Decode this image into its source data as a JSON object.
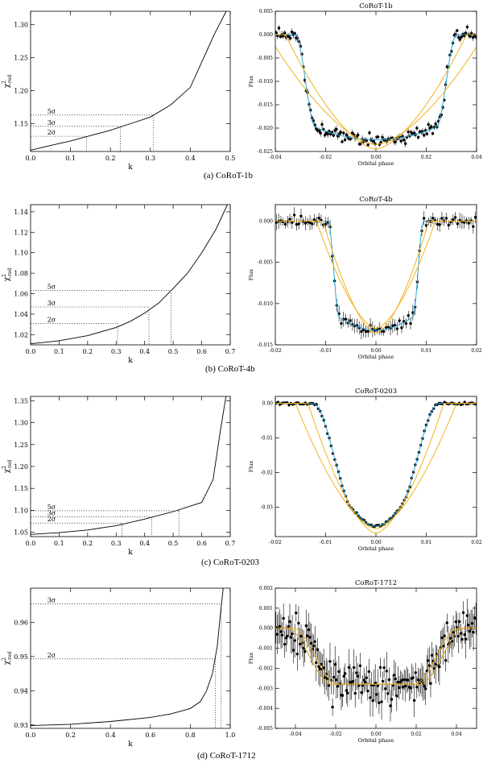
{
  "captions": [
    "(a) CoRoT-1b",
    "(b) CoRoT-4b",
    "(c) CoRoT-0203",
    "(d) CoRoT-1712"
  ],
  "chart_data": [
    {
      "type": "line",
      "panel": "a-left",
      "title": "",
      "xlabel": "k",
      "ylabel": "χ²red",
      "xlim": [
        0,
        0.5
      ],
      "ylim": [
        1.108,
        1.32
      ],
      "xticks": [
        0,
        0.1,
        0.2,
        0.3,
        0.4,
        0.5
      ],
      "xticklabels": [
        "0.0",
        "0.1",
        "0.2",
        "0.3",
        "0.4",
        "0.5"
      ],
      "yticks": [
        1.15,
        1.2,
        1.25,
        1.3
      ],
      "yticklabels": [
        "1.15",
        "1.20",
        "1.25",
        "1.30"
      ],
      "x": [
        0,
        0.05,
        0.1,
        0.15,
        0.2,
        0.25,
        0.3,
        0.35,
        0.4,
        0.43,
        0.46,
        0.49
      ],
      "y": [
        1.11,
        1.117,
        1.124,
        1.132,
        1.14,
        1.15,
        1.16,
        1.178,
        1.205,
        1.245,
        1.285,
        1.32
      ],
      "levels": [
        {
          "label": "5σ",
          "y": 1.163,
          "k": 0.308
        },
        {
          "label": "3σ",
          "y": 1.146,
          "k": 0.225
        },
        {
          "label": "2σ",
          "y": 1.131,
          "k": 0.14
        }
      ]
    },
    {
      "type": "scatter",
      "panel": "a-right",
      "title": "CoRoT-1b",
      "xlabel": "Orbital phase",
      "ylabel": "Flux",
      "xlim": [
        -0.04,
        0.04
      ],
      "ylim": [
        -0.025,
        0.005
      ],
      "xticks": [
        -0.04,
        -0.02,
        0,
        0.02,
        0.04
      ],
      "xticklabels": [
        "-0.04",
        "-0.02",
        "0.00",
        "0.02",
        "0.04"
      ],
      "yticks": [
        0.005,
        0,
        -0.005,
        -0.01,
        -0.015,
        -0.02,
        -0.025
      ],
      "yticklabels": [
        "0.005",
        "0.000",
        "-0.005",
        "-0.010",
        "-0.015",
        "-0.020",
        "-0.025"
      ],
      "depth": -0.0225,
      "t14": 0.032,
      "t12": 0.008,
      "npoints": 140,
      "noise": 0.0006,
      "errbar": 0.0006,
      "models": [
        {
          "name": "blue",
          "color": "#29a8d8",
          "shape": "trapezoid"
        },
        {
          "name": "orange1",
          "color": "#f2b21e",
          "shape": "vee",
          "depth": -0.0245,
          "half": 0.036
        },
        {
          "name": "orange2",
          "color": "#f2b21e",
          "shape": "vee",
          "depth": -0.0235,
          "half": 0.043
        }
      ]
    },
    {
      "type": "line",
      "panel": "b-left",
      "title": "",
      "xlabel": "k",
      "ylabel": "χ²red",
      "xlim": [
        0,
        0.7
      ],
      "ylim": [
        1.01,
        1.147
      ],
      "xticks": [
        0,
        0.1,
        0.2,
        0.3,
        0.4,
        0.5,
        0.6,
        0.7
      ],
      "xticklabels": [
        "0.0",
        "0.1",
        "0.2",
        "0.3",
        "0.4",
        "0.5",
        "0.6",
        "0.7"
      ],
      "yticks": [
        1.02,
        1.04,
        1.06,
        1.08,
        1.1,
        1.12,
        1.14
      ],
      "yticklabels": [
        "1.02",
        "1.04",
        "1.06",
        "1.08",
        "1.10",
        "1.12",
        "1.14"
      ],
      "x": [
        0,
        0.1,
        0.2,
        0.3,
        0.35,
        0.4,
        0.45,
        0.5,
        0.55,
        0.6,
        0.65,
        0.69
      ],
      "y": [
        1.011,
        1.014,
        1.019,
        1.027,
        1.033,
        1.041,
        1.051,
        1.065,
        1.08,
        1.1,
        1.123,
        1.147
      ],
      "levels": [
        {
          "label": "5σ",
          "y": 1.063,
          "k": 0.492
        },
        {
          "label": "3σ",
          "y": 1.047,
          "k": 0.415
        },
        {
          "label": "2σ",
          "y": 1.031,
          "k": 0.305
        }
      ]
    },
    {
      "type": "scatter",
      "panel": "b-right",
      "title": "CoRoT-4b",
      "xlabel": "Orbital phase",
      "ylabel": "Flux",
      "xlim": [
        -0.02,
        0.02
      ],
      "ylim": [
        -0.015,
        0.002
      ],
      "xticks": [
        -0.02,
        -0.01,
        0,
        0.01,
        0.02
      ],
      "xticklabels": [
        "-0.02",
        "-0.01",
        "0.00",
        "0.01",
        "0.02"
      ],
      "yticks": [
        0,
        -0.005,
        -0.01,
        -0.015
      ],
      "yticklabels": [
        "0.000",
        "-0.005",
        "-0.010",
        "-0.015"
      ],
      "depth": -0.0132,
      "t14": 0.0095,
      "t12": 0.0022,
      "npoints": 90,
      "noise": 0.0003,
      "errbar": 0.0007,
      "models": [
        {
          "name": "blue",
          "color": "#29a8d8",
          "shape": "trapezoid"
        },
        {
          "name": "orange1",
          "color": "#f2b21e",
          "shape": "vee",
          "depth": -0.0136,
          "half": 0.0105
        },
        {
          "name": "orange2",
          "color": "#f2b21e",
          "shape": "vee",
          "depth": -0.013,
          "half": 0.0118
        }
      ]
    },
    {
      "type": "line",
      "panel": "c-left",
      "title": "",
      "xlabel": "k",
      "ylabel": "χ²red",
      "xlim": [
        0,
        0.7
      ],
      "ylim": [
        1.04,
        1.36
      ],
      "xticks": [
        0,
        0.1,
        0.2,
        0.3,
        0.4,
        0.5,
        0.6,
        0.7
      ],
      "xticklabels": [
        "0.0",
        "0.1",
        "0.2",
        "0.3",
        "0.4",
        "0.5",
        "0.6",
        "0.7"
      ],
      "yticks": [
        1.05,
        1.1,
        1.15,
        1.2,
        1.25,
        1.3,
        1.35
      ],
      "yticklabels": [
        "1.05",
        "1.10",
        "1.15",
        "1.20",
        "1.25",
        "1.30",
        "1.35"
      ],
      "x": [
        0,
        0.1,
        0.2,
        0.3,
        0.4,
        0.5,
        0.6,
        0.64,
        0.665,
        0.685
      ],
      "y": [
        1.045,
        1.049,
        1.055,
        1.065,
        1.08,
        1.097,
        1.118,
        1.17,
        1.28,
        1.36
      ],
      "levels": [
        {
          "label": "5σ",
          "y": 1.099,
          "k": 0.52
        },
        {
          "label": "3σ",
          "y": 1.085,
          "k": 0.425
        },
        {
          "label": "2σ",
          "y": 1.071,
          "k": 0.32
        }
      ]
    },
    {
      "type": "scatter",
      "panel": "c-right",
      "title": "CoRoT-0203",
      "xlabel": "Orbital phase",
      "ylabel": "Flux",
      "xlim": [
        -0.02,
        0.02
      ],
      "ylim": [
        -0.0385,
        0.002
      ],
      "xticks": [
        -0.02,
        -0.01,
        0,
        0.01,
        0.02
      ],
      "xticklabels": [
        "-0.02",
        "-0.01",
        "0.00",
        "0.01",
        "0.02"
      ],
      "yticks": [
        0,
        -0.01,
        -0.02,
        -0.03
      ],
      "yticklabels": [
        "0.00",
        "-0.01",
        "-0.02",
        "-0.03"
      ],
      "depth": -0.0355,
      "t14": 0.0125,
      "t12": 0.0085,
      "npoints": 110,
      "noise": 0.0002,
      "errbar": 0.0004,
      "models": [
        {
          "name": "blue",
          "color": "#29a8d8",
          "shape": "trapezoid"
        },
        {
          "name": "orange1",
          "color": "#f2b21e",
          "shape": "vee",
          "depth": -0.0375,
          "half": 0.0135
        },
        {
          "name": "orange2",
          "color": "#f2b21e",
          "shape": "vee",
          "depth": -0.0362,
          "half": 0.016
        }
      ]
    },
    {
      "type": "line",
      "panel": "d-left",
      "title": "",
      "xlabel": "k",
      "ylabel": "χ²red",
      "xlim": [
        0,
        1.0
      ],
      "ylim": [
        0.929,
        0.97
      ],
      "xticks": [
        0,
        0.2,
        0.4,
        0.6,
        0.8,
        1.0
      ],
      "xticklabels": [
        "0.0",
        "0.2",
        "0.4",
        "0.6",
        "0.8",
        "1.0"
      ],
      "yticks": [
        0.93,
        0.94,
        0.95,
        0.96
      ],
      "yticklabels": [
        "0.93",
        "0.94",
        "0.95",
        "0.96"
      ],
      "x": [
        0,
        0.2,
        0.4,
        0.6,
        0.7,
        0.8,
        0.85,
        0.88,
        0.91,
        0.935,
        0.95,
        0.965
      ],
      "y": [
        0.9298,
        0.9302,
        0.931,
        0.9322,
        0.9332,
        0.9348,
        0.9368,
        0.9398,
        0.9448,
        0.953,
        0.962,
        0.97
      ],
      "levels": [
        {
          "label": "3σ",
          "y": 0.9654,
          "k": 0.955
        },
        {
          "label": "2σ",
          "y": 0.9493,
          "k": 0.925
        }
      ]
    },
    {
      "type": "scatter",
      "panel": "d-right",
      "title": "CoRoT-1712",
      "xlabel": "Orbital phase",
      "ylabel": "Flux",
      "xlim": [
        -0.05,
        0.05
      ],
      "ylim": [
        -0.005,
        0.002
      ],
      "xticks": [
        -0.04,
        -0.02,
        0,
        0.02,
        0.04
      ],
      "xticklabels": [
        "-0.04",
        "-0.02",
        "0.00",
        "0.02",
        "0.04"
      ],
      "yticks": [
        0.002,
        0.001,
        0,
        -0.001,
        -0.002,
        -0.003,
        -0.004,
        -0.005
      ],
      "yticklabels": [
        "0.002",
        "0.001",
        "0.000",
        "-0.001",
        "-0.002",
        "-0.003",
        "-0.004",
        "-0.005"
      ],
      "depth": -0.0028,
      "t14": 0.036,
      "t12": 0.016,
      "npoints": 160,
      "noise": 0.0005,
      "errbar": 0.0007,
      "models": [
        {
          "name": "orange1",
          "color": "#f2b21e",
          "shape": "smooth"
        },
        {
          "name": "orange2",
          "color": "#d8a020",
          "shape": "smooth2"
        }
      ]
    }
  ]
}
